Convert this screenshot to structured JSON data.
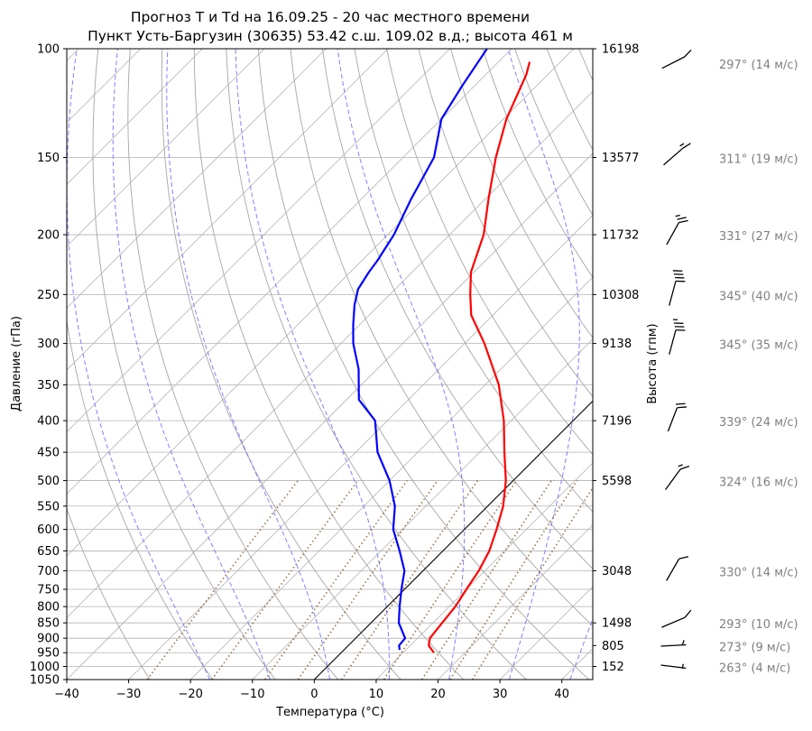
{
  "chart_data": {
    "type": "line",
    "title": "Прогноз T и Td на 16.09.25 - 20 час местного времени",
    "subtitle": "Пункт Усть-Баргузин (30635) 53.42 с.ш. 109.02 в.д.; высота 461 м",
    "xlabel": "Температура (°C)",
    "ylabel": "Давление (гПа)",
    "ylabel_right": "Высота (гпм)",
    "xlim": [
      -40,
      45
    ],
    "ylim": [
      1050,
      100
    ],
    "y_scale": "log",
    "skew": true,
    "grid": true,
    "x_ticks": [
      "−40",
      "−30",
      "−20",
      "−10",
      "0",
      "10",
      "20",
      "30",
      "40"
    ],
    "x_tick_values": [
      -40,
      -30,
      -20,
      -10,
      0,
      10,
      20,
      30,
      40
    ],
    "y_ticks": [
      100,
      150,
      200,
      250,
      300,
      350,
      400,
      450,
      500,
      550,
      600,
      650,
      700,
      750,
      800,
      850,
      900,
      950,
      1000,
      1050
    ],
    "height_labels": [
      {
        "p": 100,
        "h": "16198"
      },
      {
        "p": 150,
        "h": "13577"
      },
      {
        "p": 200,
        "h": "11732"
      },
      {
        "p": 250,
        "h": "10308"
      },
      {
        "p": 300,
        "h": "9138"
      },
      {
        "p": 400,
        "h": "7196"
      },
      {
        "p": 500,
        "h": "5598"
      },
      {
        "p": 700,
        "h": "3048"
      },
      {
        "p": 850,
        "h": "1498"
      },
      {
        "p": 925,
        "h": "805"
      },
      {
        "p": 1000,
        "h": "152"
      }
    ],
    "series": [
      {
        "key": "temperature",
        "color": "#ff0000",
        "points": [
          [
            950,
            15.0
          ],
          [
            925,
            13.0
          ],
          [
            900,
            12.0
          ],
          [
            850,
            11.5
          ],
          [
            800,
            11.0
          ],
          [
            750,
            10.0
          ],
          [
            700,
            9.0
          ],
          [
            650,
            7.5
          ],
          [
            600,
            5.2
          ],
          [
            550,
            2.5
          ],
          [
            500,
            -1.2
          ],
          [
            450,
            -6.0
          ],
          [
            400,
            -11.2
          ],
          [
            350,
            -17.8
          ],
          [
            300,
            -26.8
          ],
          [
            270,
            -33.5
          ],
          [
            250,
            -37.0
          ],
          [
            230,
            -40.5
          ],
          [
            200,
            -44.5
          ],
          [
            175,
            -49.5
          ],
          [
            150,
            -55.0
          ],
          [
            130,
            -59.5
          ],
          [
            110,
            -63.5
          ],
          [
            105,
            -65.0
          ]
        ]
      },
      {
        "key": "dewpoint",
        "color": "#0000ff",
        "points": [
          [
            940,
            9.0
          ],
          [
            925,
            8.2
          ],
          [
            900,
            8.0
          ],
          [
            850,
            4.5
          ],
          [
            800,
            2.0
          ],
          [
            750,
            -0.5
          ],
          [
            700,
            -3.0
          ],
          [
            650,
            -7.0
          ],
          [
            600,
            -11.5
          ],
          [
            550,
            -15.0
          ],
          [
            500,
            -20.0
          ],
          [
            450,
            -26.5
          ],
          [
            400,
            -32.0
          ],
          [
            370,
            -38.0
          ],
          [
            330,
            -43.0
          ],
          [
            300,
            -48.0
          ],
          [
            280,
            -51.0
          ],
          [
            260,
            -54.0
          ],
          [
            245,
            -56.0
          ],
          [
            230,
            -57.0
          ],
          [
            220,
            -57.5
          ],
          [
            200,
            -59.0
          ],
          [
            175,
            -62.0
          ],
          [
            150,
            -65.0
          ],
          [
            130,
            -70.0
          ],
          [
            115,
            -72.0
          ],
          [
            100,
            -74.0
          ]
        ]
      }
    ],
    "wind_barbs": [
      {
        "p": 100,
        "dir": 297,
        "label": "297° (14 м/с)"
      },
      {
        "p": 150,
        "dir": 311,
        "label": "311° (19 м/с)"
      },
      {
        "p": 200,
        "dir": 331,
        "label": "331° (27 м/с)"
      },
      {
        "p": 250,
        "dir": 345,
        "label": "345° (40 м/с)"
      },
      {
        "p": 300,
        "dir": 345,
        "label": "345° (35 м/с)"
      },
      {
        "p": 400,
        "dir": 339,
        "label": "339° (24 м/с)"
      },
      {
        "p": 500,
        "dir": 324,
        "label": "324° (16 м/с)"
      },
      {
        "p": 700,
        "dir": 330,
        "label": "330° (14 м/с)"
      },
      {
        "p": 850,
        "dir": 293,
        "label": "293° (10 м/с)"
      },
      {
        "p": 925,
        "dir": 273,
        "label": "273° (9 м/с)"
      },
      {
        "p": 1000,
        "dir": 263,
        "label": "263° (4 м/с)"
      }
    ],
    "colors": {
      "dry_adiabats": "#a6a6a6",
      "isotherms": "#b3b3b3",
      "moist_adiabats": "#6a6aff",
      "mixing_ratio": "#8b5a2b",
      "reference_line": "#000000",
      "barb_label": "#808080"
    }
  }
}
